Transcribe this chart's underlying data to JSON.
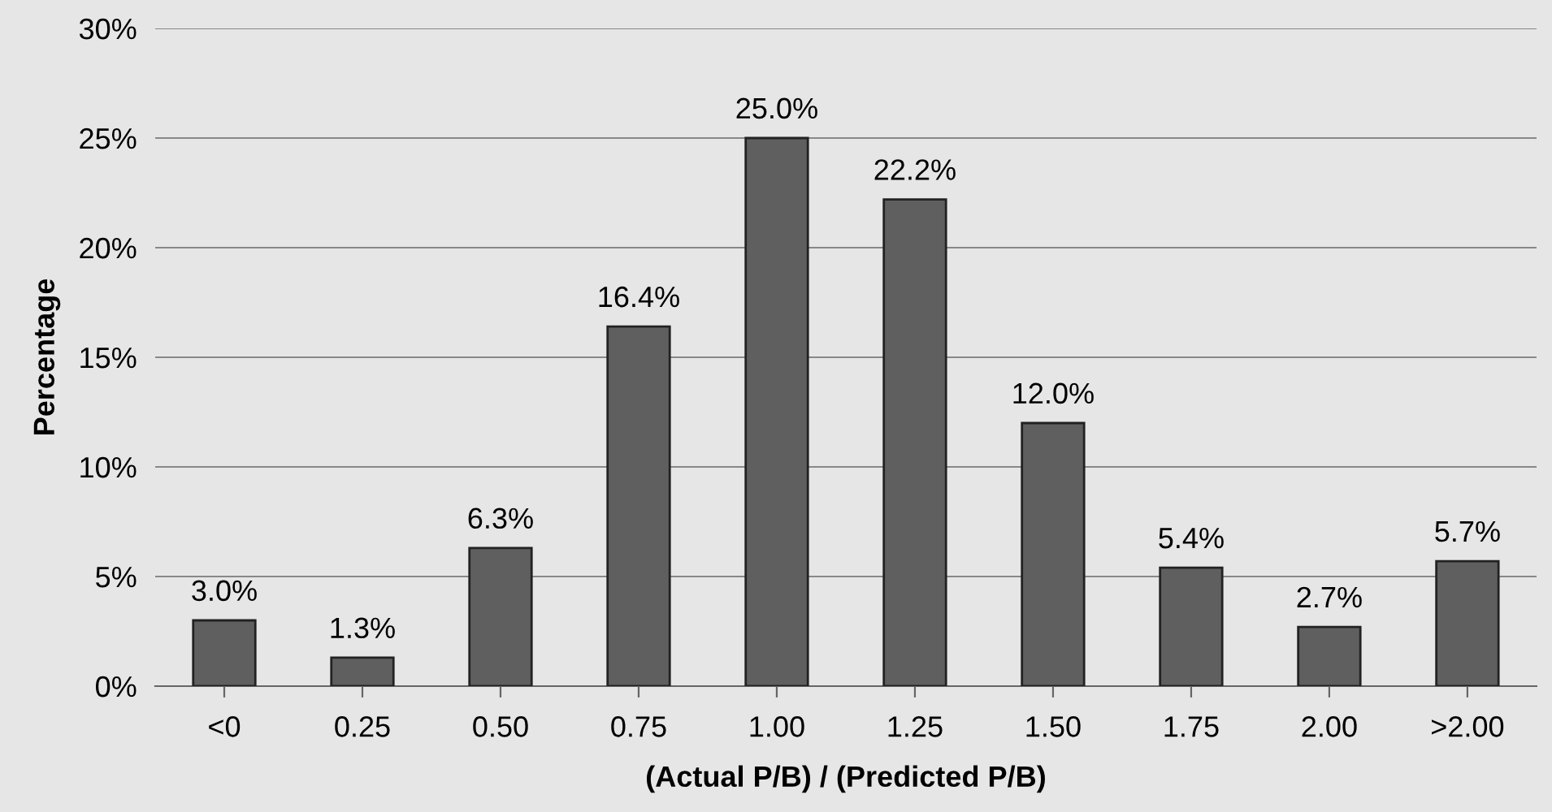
{
  "chart_data": {
    "type": "bar",
    "xlabel": "(Actual P/B) / (Predicted P/B)",
    "ylabel": "Percentage",
    "categories": [
      "<0",
      "0.25",
      "0.50",
      "0.75",
      "1.00",
      "1.25",
      "1.50",
      "1.75",
      "2.00",
      ">2.00"
    ],
    "values": [
      3.0,
      1.3,
      6.3,
      16.4,
      25.0,
      22.2,
      12.0,
      5.4,
      2.7,
      5.7
    ],
    "value_labels": [
      "3.0%",
      "1.3%",
      "6.3%",
      "16.4%",
      "25.0%",
      "22.2%",
      "12.0%",
      "5.4%",
      "2.7%",
      "5.7%"
    ],
    "color": "#5f5f5f",
    "ylim": [
      0,
      30
    ],
    "yticks": [
      {
        "value": 0,
        "label": "0%"
      },
      {
        "value": 5,
        "label": "5%"
      },
      {
        "value": 10,
        "label": "10%"
      },
      {
        "value": 15,
        "label": "15%"
      },
      {
        "value": 20,
        "label": "20%"
      },
      {
        "value": 25,
        "label": "25%"
      },
      {
        "value": 30,
        "label": "30%"
      }
    ],
    "grid": "y"
  }
}
